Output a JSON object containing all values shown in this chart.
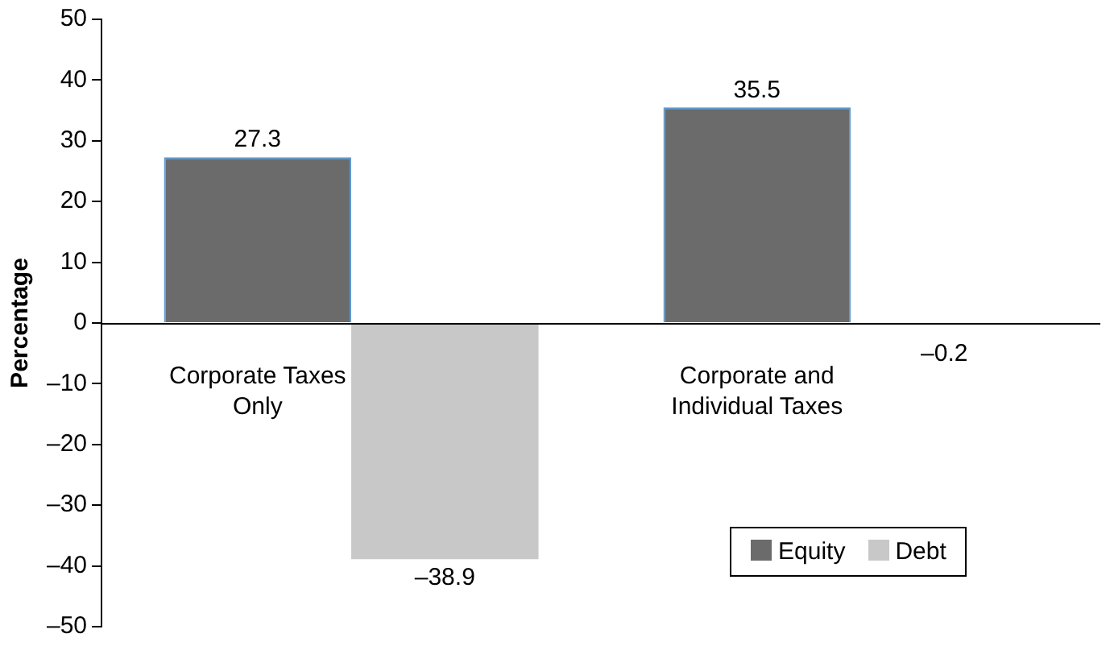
{
  "chart_data": {
    "type": "bar",
    "ylabel": "Percentage",
    "categories": [
      "Corporate Taxes Only",
      "Corporate and Individual Taxes"
    ],
    "series": [
      {
        "name": "Equity",
        "color": "#6b6b6b",
        "values": [
          27.3,
          35.5
        ],
        "value_labels": [
          "27.3",
          "35.5"
        ]
      },
      {
        "name": "Debt",
        "color": "#c8c8c8",
        "values": [
          -38.9,
          -0.2
        ],
        "value_labels": [
          "–38.9",
          "–0.2"
        ]
      }
    ],
    "ylim": [
      -50,
      50
    ],
    "yticks": [
      {
        "value": -50,
        "label": "–50"
      },
      {
        "value": -40,
        "label": "–40"
      },
      {
        "value": -30,
        "label": "–30"
      },
      {
        "value": -20,
        "label": "–20"
      },
      {
        "value": -10,
        "label": "–10"
      },
      0,
      10,
      20,
      30,
      40,
      50
    ],
    "grid": false,
    "legend": "bottom right"
  }
}
